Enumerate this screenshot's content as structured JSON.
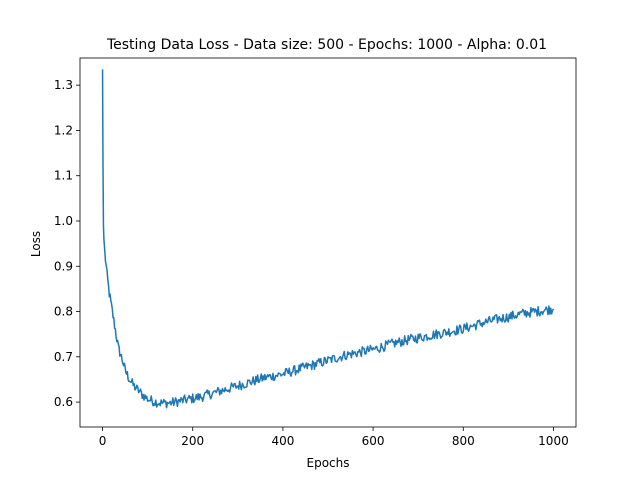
{
  "chart_data": {
    "type": "line",
    "title": "Testing Data Loss - Data size: 500 - Epochs: 1000 - Alpha: 0.01",
    "xlabel": "Epochs",
    "ylabel": "Loss",
    "xlim": [
      -50,
      1050
    ],
    "ylim": [
      0.545,
      1.36
    ],
    "xticks": [
      0,
      200,
      400,
      600,
      800,
      1000
    ],
    "xtick_labels": [
      "0",
      "200",
      "400",
      "600",
      "800",
      "1000"
    ],
    "yticks": [
      0.6,
      0.7,
      0.8,
      0.9,
      1.0,
      1.1,
      1.2,
      1.3
    ],
    "ytick_labels": [
      "0.6",
      "0.7",
      "0.8",
      "0.9",
      "1.0",
      "1.1",
      "1.2",
      "1.3"
    ],
    "grid": false,
    "legend": false,
    "colors": {
      "line": "#1f77b4"
    },
    "series": [
      {
        "x": [
          0,
          1,
          2,
          3,
          5,
          8,
          10,
          15,
          20,
          25,
          30,
          35,
          40,
          45,
          50,
          55,
          60,
          70,
          80,
          90,
          100,
          110,
          120,
          130,
          140,
          150,
          160,
          170,
          180,
          190,
          200,
          220,
          240,
          260,
          280,
          300,
          320,
          340,
          360,
          380,
          400,
          420,
          440,
          460,
          480,
          500,
          520,
          540,
          560,
          580,
          600,
          620,
          640,
          660,
          680,
          700,
          720,
          740,
          760,
          780,
          800,
          820,
          840,
          860,
          880,
          900,
          920,
          940,
          960,
          980,
          1000
        ],
        "y": [
          1.335,
          1.12,
          0.99,
          0.96,
          0.93,
          0.9,
          0.88,
          0.84,
          0.81,
          0.78,
          0.75,
          0.72,
          0.705,
          0.69,
          0.67,
          0.66,
          0.65,
          0.635,
          0.625,
          0.615,
          0.607,
          0.603,
          0.6,
          0.598,
          0.598,
          0.598,
          0.6,
          0.602,
          0.604,
          0.606,
          0.608,
          0.612,
          0.618,
          0.624,
          0.63,
          0.636,
          0.642,
          0.648,
          0.654,
          0.658,
          0.662,
          0.668,
          0.674,
          0.68,
          0.686,
          0.692,
          0.698,
          0.704,
          0.708,
          0.712,
          0.716,
          0.722,
          0.728,
          0.733,
          0.738,
          0.742,
          0.746,
          0.75,
          0.754,
          0.758,
          0.762,
          0.768,
          0.774,
          0.779,
          0.784,
          0.788,
          0.793,
          0.797,
          0.8,
          0.803,
          0.806
        ]
      }
    ]
  }
}
